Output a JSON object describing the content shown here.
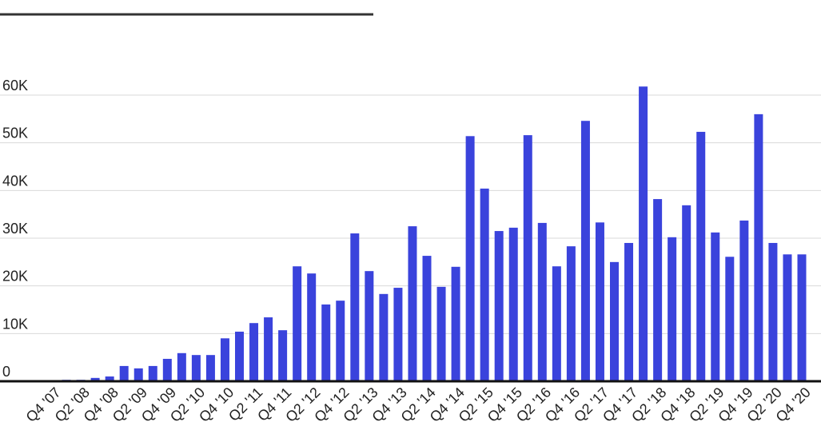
{
  "chart_data": {
    "type": "bar",
    "categories": [
      "Q4 '07",
      null,
      "Q2 '08",
      null,
      "Q4 '08",
      null,
      "Q2 '09",
      null,
      "Q4 '09",
      null,
      "Q2 '10",
      null,
      "Q4 '10",
      null,
      "Q2 '11",
      null,
      "Q4 '11",
      null,
      "Q2 '12",
      null,
      "Q4 '12",
      null,
      "Q2 '13",
      null,
      "Q4 '13",
      null,
      "Q2 '14",
      null,
      "Q4 '14",
      null,
      "Q2 '15",
      null,
      "Q4 '15",
      null,
      "Q2 '16",
      null,
      "Q4 '16",
      null,
      "Q2 '17",
      null,
      "Q4 '17",
      null,
      "Q2 '18",
      null,
      "Q4 '18",
      null,
      "Q2 '19",
      null,
      "Q4 '19",
      null,
      "Q2 '20",
      null,
      "Q4 '20"
    ],
    "values": [
      0,
      300,
      300,
      700,
      1000,
      3200,
      2700,
      3200,
      4700,
      5900,
      5500,
      5500,
      9000,
      10400,
      12200,
      13400,
      10700,
      24100,
      22600,
      16100,
      16900,
      31000,
      23100,
      18300,
      19600,
      32500,
      26300,
      19800,
      24000,
      51400,
      40400,
      31500,
      32200,
      51600,
      33200,
      24100,
      28300,
      54600,
      33300,
      25000,
      29000,
      61800,
      38200,
      30200,
      36900,
      52300,
      31200,
      26100,
      33700,
      56000,
      29000,
      26600,
      26600
    ],
    "color": "#3a43dc",
    "ylim": [
      0,
      60000
    ],
    "yticks": [
      0,
      {
        "value": 10000,
        "label": "10K"
      },
      {
        "value": 20000,
        "label": "20K"
      },
      {
        "value": 30000,
        "label": "30K"
      },
      {
        "value": 40000,
        "label": "40K"
      },
      {
        "value": 50000,
        "label": "50K"
      },
      {
        "value": 60000,
        "label": "60K"
      }
    ],
    "grid": true
  }
}
